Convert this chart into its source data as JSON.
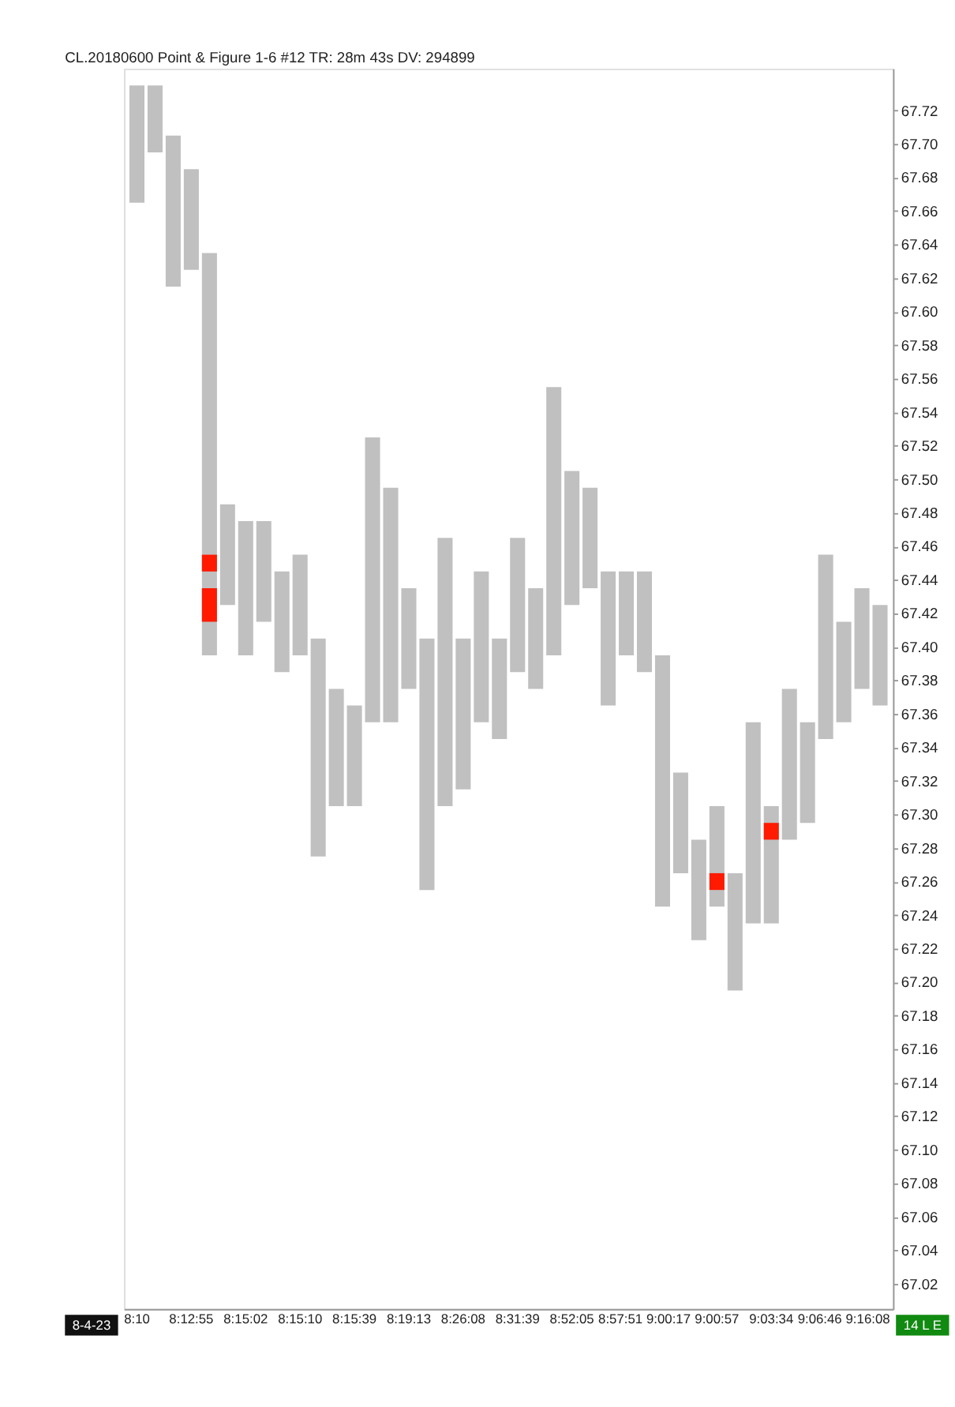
{
  "chart_data": {
    "type": "bar",
    "title": "CL.20180600 Point & Figure 1-6 #12 TR: 28m 43s DV: 294899",
    "categories": [
      "8:10",
      null,
      null,
      "8:12:55",
      null,
      null,
      "8:15:02",
      null,
      null,
      "8:15:10",
      null,
      null,
      "8:15:39",
      null,
      null,
      "8:19:13",
      null,
      null,
      "8:26:08",
      null,
      null,
      "8:31:39",
      null,
      null,
      "8:52:05",
      null,
      null,
      "8:57:51",
      null,
      "9:00:17",
      null,
      null,
      "9:00:57",
      null,
      null,
      "9:03:34",
      null,
      null,
      "9:06:46",
      null,
      "9:16:08",
      null
    ],
    "series": [
      {
        "color": "#c0c0c0",
        "base": [
          67.665,
          67.695,
          67.615,
          67.625,
          67.395,
          67.425,
          67.395,
          67.415,
          67.385,
          67.395,
          67.275,
          67.305,
          67.305,
          67.355,
          67.355,
          67.375,
          67.255,
          67.305,
          67.315,
          67.355,
          67.345,
          67.385,
          67.375,
          67.395,
          67.425,
          67.435,
          67.365,
          67.395,
          67.385,
          67.245,
          67.265,
          67.225,
          67.245,
          67.195,
          67.235,
          67.235,
          67.285,
          67.295,
          67.345,
          67.355,
          67.375,
          67.365
        ],
        "values": [
          0.07,
          0.04,
          0.09,
          0.06,
          0.24,
          0.06,
          0.08,
          0.06,
          0.06,
          0.06,
          0.13,
          0.07,
          0.06,
          0.17,
          0.14,
          0.06,
          0.15,
          0.16,
          0.09,
          0.09,
          0.06,
          0.08,
          0.06,
          0.16,
          0.08,
          0.06,
          0.08,
          0.05,
          0.06,
          0.15,
          0.06,
          0.06,
          0.06,
          0.07,
          0.12,
          0.07,
          0.09,
          0.06,
          0.11,
          0.06,
          0.06,
          0.06
        ]
      },
      {
        "color": "#ff1a00",
        "base": [
          null,
          null,
          null,
          null,
          67.415,
          null,
          null,
          null,
          null,
          null,
          null,
          null,
          null,
          null,
          null,
          null,
          null,
          null,
          null,
          null,
          null,
          null,
          null,
          null,
          null,
          null,
          null,
          null,
          null,
          null,
          null,
          null,
          67.255,
          null,
          null,
          67.285,
          null,
          null,
          null,
          null,
          null,
          null
        ],
        "values": [
          null,
          null,
          null,
          null,
          0.02,
          null,
          null,
          null,
          null,
          null,
          null,
          null,
          null,
          null,
          null,
          null,
          null,
          null,
          null,
          null,
          null,
          null,
          null,
          null,
          null,
          null,
          null,
          null,
          null,
          null,
          null,
          null,
          0.01,
          null,
          null,
          0.01,
          null,
          null,
          null,
          null,
          null,
          null
        ]
      },
      {
        "color": "#ff1a00",
        "base": [
          null,
          null,
          null,
          null,
          67.445,
          null,
          null,
          null,
          null,
          null,
          null,
          null,
          null,
          null,
          null,
          null,
          null,
          null,
          null,
          null,
          null,
          null,
          null,
          null,
          null,
          null,
          null,
          null,
          null,
          null,
          null,
          null,
          null,
          null,
          null,
          null,
          null,
          null,
          null,
          null,
          null,
          null
        ],
        "values": [
          null,
          null,
          null,
          null,
          0.01,
          null,
          null,
          null,
          null,
          null,
          null,
          null,
          null,
          null,
          null,
          null,
          null,
          null,
          null,
          null,
          null,
          null,
          null,
          null,
          null,
          null,
          null,
          null,
          null,
          null,
          null,
          null,
          null,
          null,
          null,
          null,
          null,
          null,
          null,
          null,
          null,
          null
        ]
      }
    ],
    "ylim": [
      67.005,
      67.745
    ],
    "yticks": [
      67.02,
      67.04,
      67.06,
      67.08,
      {
        "value": 67.1,
        "label": "67.10"
      },
      67.12,
      67.14,
      67.16,
      67.18,
      {
        "value": 67.2,
        "label": "67.20"
      },
      67.22,
      67.24,
      67.26,
      67.28,
      {
        "value": 67.3,
        "label": "67.30"
      },
      67.32,
      67.34,
      67.36,
      67.38,
      {
        "value": 67.4,
        "label": "67.40"
      },
      67.42,
      67.44,
      67.46,
      67.48,
      {
        "value": 67.5,
        "label": "67.50"
      },
      67.52,
      67.54,
      67.56,
      67.58,
      {
        "value": 67.6,
        "label": "67.60"
      },
      67.62,
      67.64,
      67.66,
      67.68,
      {
        "value": 67.7,
        "label": "67.70"
      },
      67.72
    ],
    "annotations": [
      "8-4-23",
      "14 L E"
    ],
    "grid": false
  }
}
